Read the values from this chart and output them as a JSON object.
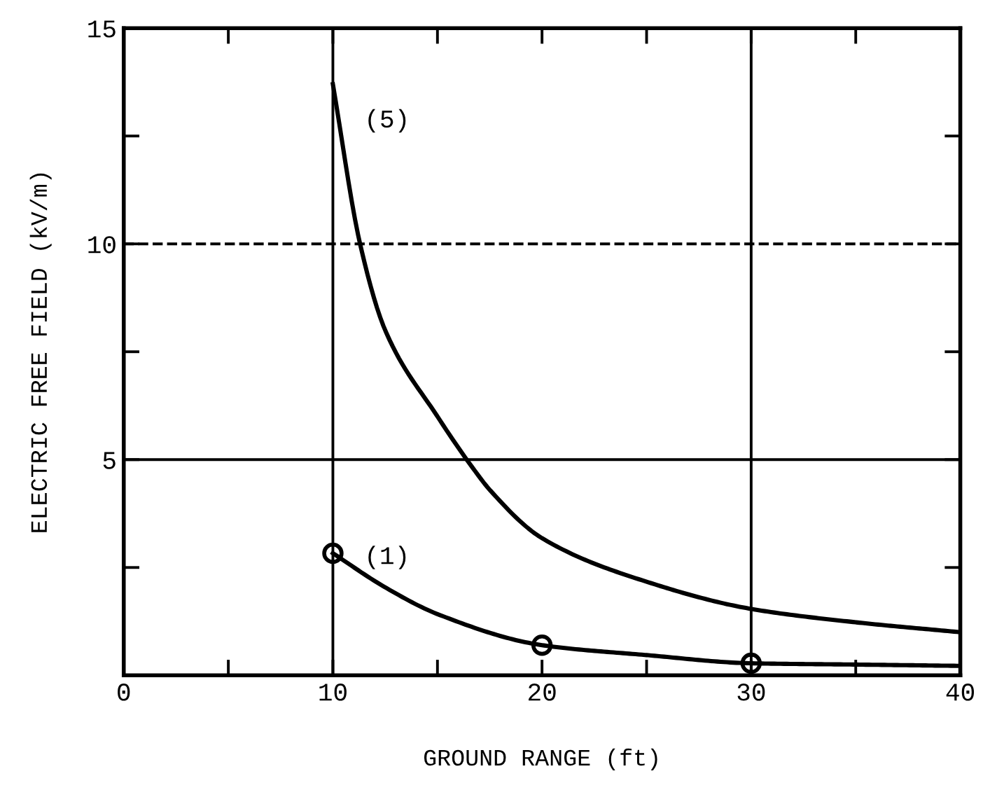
{
  "chart_data": {
    "type": "line",
    "xlabel": "GROUND RANGE (ft)",
    "ylabel": "ELECTRIC FREE FIELD (kV/m)",
    "xlim": [
      0,
      40
    ],
    "ylim": [
      0,
      15
    ],
    "xticks": [
      0,
      {
        "value": 5,
        "label": null
      },
      10,
      {
        "value": 15,
        "label": null
      },
      20,
      {
        "value": 25,
        "label": null
      },
      30,
      {
        "value": 35,
        "label": null
      },
      40
    ],
    "yticks": [
      {
        "value": 2.5,
        "label": null
      },
      5,
      {
        "value": 7.5,
        "label": null
      },
      10,
      {
        "value": 12.5,
        "label": null
      },
      15
    ],
    "grid": false,
    "legend": false,
    "line_style": "solid",
    "series": [
      {
        "name": "(5)",
        "color": "#000000",
        "marker": "none",
        "x": [
          10,
          11.3,
          12.5,
          15,
          16.7,
          17.5,
          20,
          25,
          30,
          35,
          40
        ],
        "values": [
          13.7,
          10,
          8,
          6,
          4.8,
          4.3,
          3.18,
          2.17,
          1.54,
          1.23,
          1.0
        ]
      },
      {
        "name": "(1)",
        "color": "#000000",
        "marker": "none",
        "x": [
          10,
          12.5,
          15,
          20,
          25,
          30,
          35,
          40
        ],
        "values": [
          2.83,
          2.04,
          1.42,
          0.7,
          0.47,
          0.28,
          0.25,
          0.22
        ]
      },
      {
        "type": "scatter",
        "color": "#000000",
        "marker": "circle",
        "x": [
          10,
          20,
          30
        ],
        "values": [
          2.83,
          0.7,
          0.28
        ]
      }
    ],
    "ref_lines": [
      {
        "axis": "y",
        "value": 10,
        "line_style": "dashed",
        "color": "#000000"
      },
      {
        "axis": "y",
        "value": 5,
        "line_style": "solid",
        "color": "#000000"
      },
      {
        "axis": "x",
        "value": 10,
        "line_style": "solid",
        "color": "#000000"
      },
      {
        "axis": "x",
        "value": 30,
        "line_style": "solid",
        "color": "#000000"
      }
    ]
  }
}
